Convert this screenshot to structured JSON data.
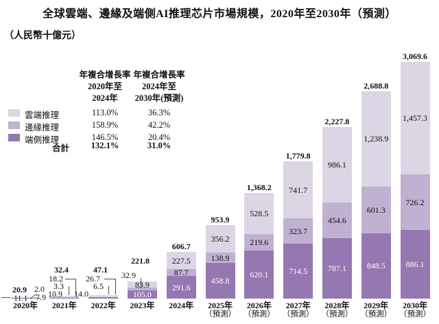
{
  "title": "全球雲端、邊緣及端側AI推理芯片市場規模，2020年至2030年（預測）",
  "unit": "（人民幣十億元）",
  "legend": {
    "items": [
      {
        "label": "雲端推理",
        "color": "#dbd5e4"
      },
      {
        "label": "邊緣推理",
        "color": "#c0b1d2"
      },
      {
        "label": "端側推理",
        "color": "#9577b1"
      }
    ],
    "total_label": "合計"
  },
  "cagr_table": {
    "columns": [
      {
        "header_lines": [
          "年複合增長率",
          "2020年至",
          "2024年"
        ],
        "values": [
          "113.0%",
          "158.9%",
          "146.5%"
        ],
        "total": "132.1%"
      },
      {
        "header_lines": [
          "年複合增長率",
          "2024年至",
          "2030年(預測)"
        ],
        "values": [
          "36.3%",
          "42.2%",
          "20.4%"
        ],
        "total": "31.0%"
      }
    ]
  },
  "chart_data": {
    "type": "bar",
    "stacked": true,
    "title": "全球雲端、邊緣及端側AI推理芯片市場規模，2020年至2030年（預測）",
    "ylabel": "人民幣十億元",
    "ylim": [
      0,
      3200
    ],
    "grid": false,
    "legend_position": "left",
    "categories": [
      "2020年",
      "2021年",
      "2022年",
      "2023年",
      "2024年",
      "2025年",
      "2026年",
      "2027年",
      "2028年",
      "2029年",
      "2030年"
    ],
    "forecast_note": "（預測）",
    "forecast_from_index": 5,
    "series": [
      {
        "name": "端側推理",
        "color": "#9577b1",
        "values": [
          7.9,
          10.9,
          14.0,
          105.0,
          291.6,
          458.8,
          620.1,
          714.5,
          787.1,
          848.5,
          886.1
        ]
      },
      {
        "name": "邊緣推理",
        "color": "#c0b1d2",
        "values": [
          2.0,
          3.3,
          6.5,
          32.9,
          87.7,
          138.9,
          219.6,
          323.7,
          454.6,
          601.3,
          726.2
        ]
      },
      {
        "name": "雲端推理",
        "color": "#dbd5e4",
        "values": [
          11.1,
          18.2,
          26.7,
          83.9,
          227.5,
          356.2,
          528.5,
          741.7,
          986.1,
          1238.9,
          1457.3
        ]
      }
    ],
    "totals": [
      20.9,
      32.4,
      47.1,
      221.8,
      606.7,
      953.9,
      1368.2,
      1779.8,
      2227.8,
      2688.8,
      3069.6
    ]
  }
}
